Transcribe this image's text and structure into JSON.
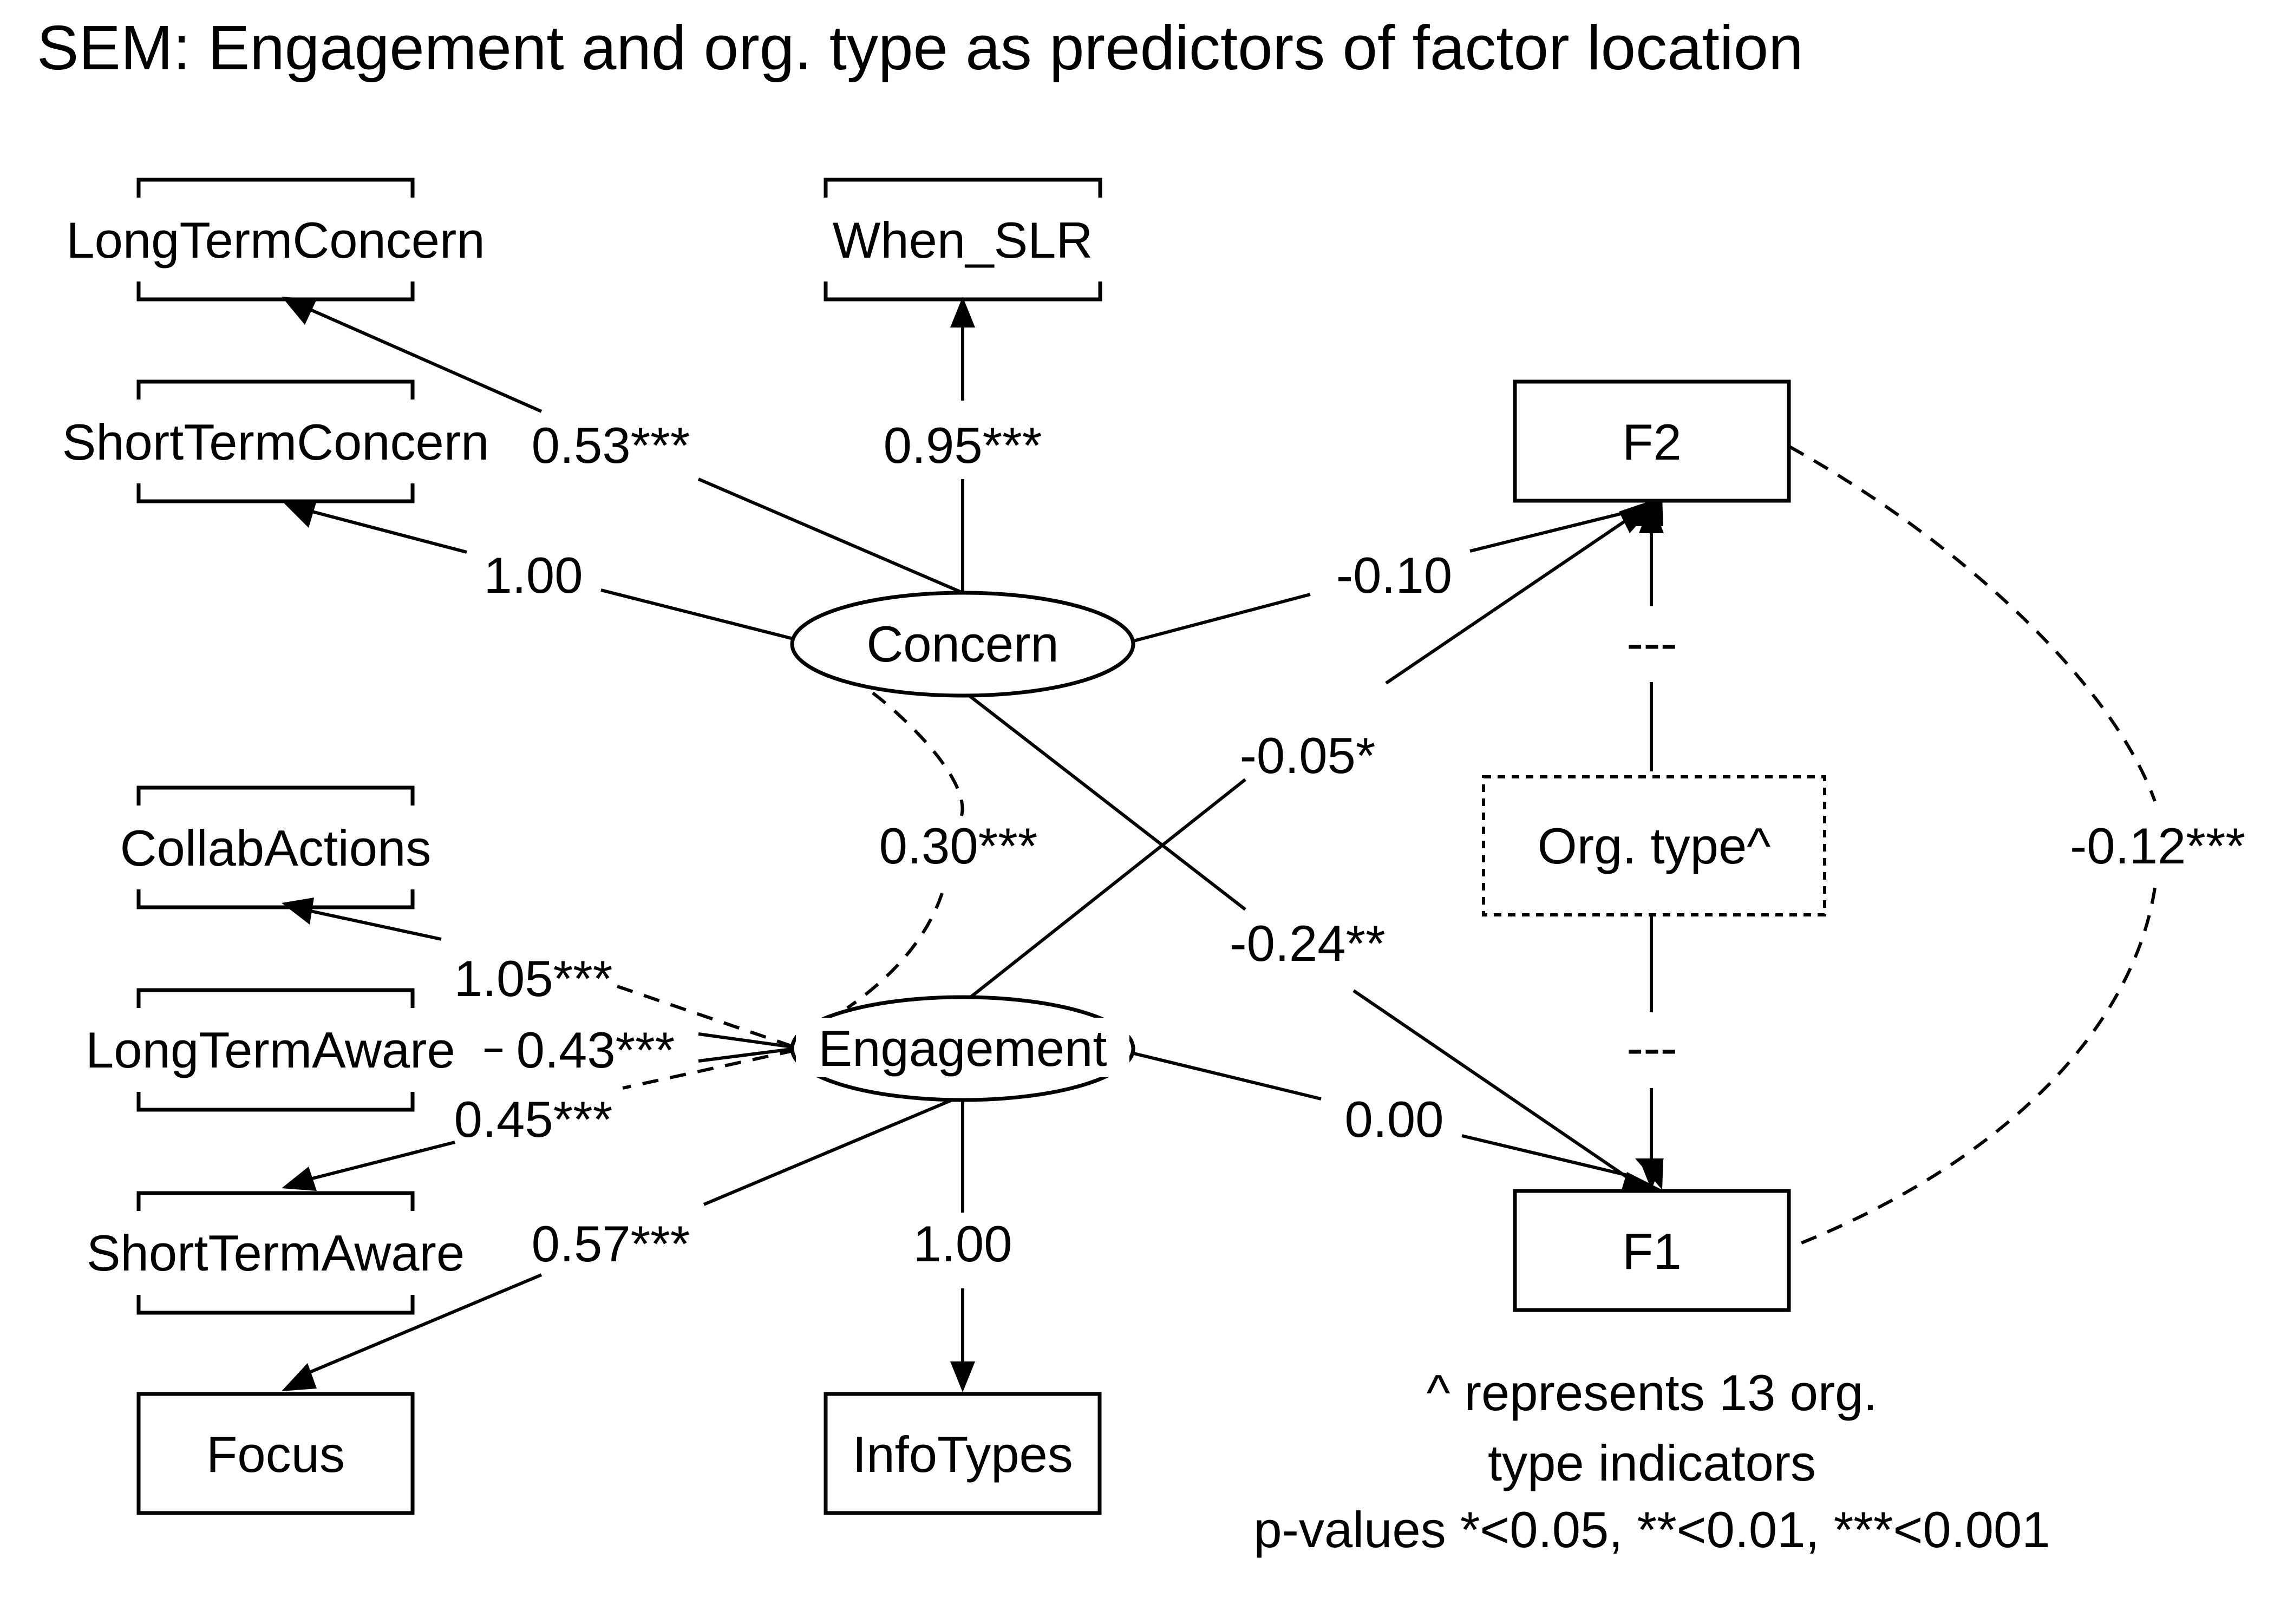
{
  "title": "SEM: Engagement and org. type as predictors of factor location",
  "latent": {
    "concern": "Concern",
    "engagement": "Engagement"
  },
  "observed": {
    "long_term_concern": "LongTermConcern",
    "when_slr": "When_SLR",
    "short_term_concern": "ShortTermConcern",
    "collab_actions": "CollabActions",
    "long_term_aware": "LongTermAware",
    "short_term_aware": "ShortTermAware",
    "focus": "Focus",
    "info_types": "InfoTypes",
    "f1": "F1",
    "f2": "F2",
    "org_type": "Org. type^"
  },
  "paths": {
    "concern_to_long_term_concern": "0.53***",
    "concern_to_when_slr": "0.95***",
    "concern_to_short_term_concern": "1.00",
    "concern_to_f2": "-0.10",
    "concern_to_f1": "-0.24**",
    "concern_engagement_cov": "0.30***",
    "engagement_to_f2": "-0.05*",
    "engagement_to_f1": "0.00",
    "engagement_to_collab_actions": "1.05***",
    "engagement_to_long_term_aware": "0.43***",
    "engagement_to_short_term_aware": "0.45***",
    "engagement_to_focus": "0.57***",
    "engagement_to_info_types": "1.00",
    "org_to_f2": "---",
    "org_to_f1": "---",
    "f1_f2_cov": "-0.12***"
  },
  "notes": {
    "line1": "^ represents 13 org.",
    "line2": "type indicators",
    "line3": "p-values *<0.05, **<0.01, ***<0.001"
  }
}
